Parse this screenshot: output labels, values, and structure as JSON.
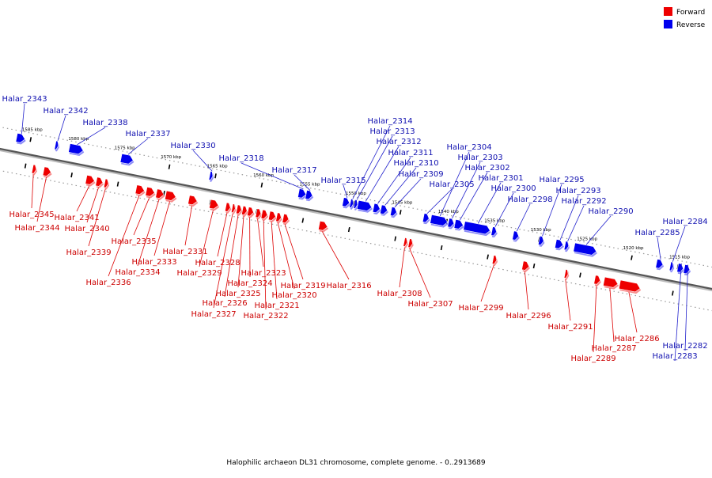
{
  "colors": {
    "forward": "#ee0000",
    "reverse": "#0000ee",
    "axis": "#555555",
    "leader_forward": "#dd0000",
    "leader_reverse": "#2020cc"
  },
  "legend": {
    "forward": "Forward",
    "reverse": "Reverse"
  },
  "caption": "Halophilic archaeon DL31 chromosome, complete genome. - 0..2913689",
  "ticks": [
    "1585 kbp",
    "1580 kbp",
    "1575 kbp",
    "1570 kbp",
    "1565 kbp",
    "1560 kbp",
    "1555 kbp",
    "1550 kbp",
    "1545 kbp",
    "1540 kbp",
    "1535 kbp",
    "1530 kbp",
    "1525 kbp",
    "1520 kbp",
    "1515 kbp"
  ],
  "genes": [
    {
      "name": "Halar_2343",
      "strand": "reverse",
      "start": 1586.5,
      "end": 1585.6
    },
    {
      "name": "Halar_2345",
      "strand": "forward",
      "start": 1584.2,
      "end": 1583.8
    },
    {
      "name": "Halar_2344",
      "strand": "forward",
      "start": 1583.0,
      "end": 1582.2
    },
    {
      "name": "Halar_2342",
      "strand": "reverse",
      "start": 1582.3,
      "end": 1582.0
    },
    {
      "name": "Halar_2338",
      "strand": "reverse",
      "start": 1580.8,
      "end": 1579.3
    },
    {
      "name": "Halar_2341",
      "strand": "forward",
      "start": 1578.4,
      "end": 1577.5
    },
    {
      "name": "Halar_2340",
      "strand": "forward",
      "start": 1577.3,
      "end": 1576.6
    },
    {
      "name": "Halar_2339",
      "strand": "forward",
      "start": 1576.4,
      "end": 1576.0
    },
    {
      "name": "Halar_2337",
      "strand": "reverse",
      "start": 1575.2,
      "end": 1573.9
    },
    {
      "name": "Halar_2336",
      "strand": "forward",
      "start": 1573.0,
      "end": 1572.1
    },
    {
      "name": "Halar_2335",
      "strand": "forward",
      "start": 1571.9,
      "end": 1571.0
    },
    {
      "name": "Halar_2334",
      "strand": "forward",
      "start": 1570.8,
      "end": 1570.0
    },
    {
      "name": "Halar_2333",
      "strand": "forward",
      "start": 1569.8,
      "end": 1568.7
    },
    {
      "name": "Halar_2331",
      "strand": "forward",
      "start": 1567.3,
      "end": 1566.4
    },
    {
      "name": "Halar_2330",
      "strand": "reverse",
      "start": 1565.6,
      "end": 1565.3
    },
    {
      "name": "Halar_2329",
      "strand": "forward",
      "start": 1565.0,
      "end": 1564.1
    },
    {
      "name": "Halar_2328",
      "strand": "forward",
      "start": 1563.3,
      "end": 1562.8
    },
    {
      "name": "Halar_2327",
      "strand": "forward",
      "start": 1562.6,
      "end": 1562.3
    },
    {
      "name": "Halar_2326",
      "strand": "forward",
      "start": 1562.1,
      "end": 1561.6
    },
    {
      "name": "Halar_2325",
      "strand": "forward",
      "start": 1561.5,
      "end": 1561.0
    },
    {
      "name": "Halar_2324",
      "strand": "forward",
      "start": 1560.9,
      "end": 1560.3
    },
    {
      "name": "Halar_2323",
      "strand": "forward",
      "start": 1560.0,
      "end": 1559.5
    },
    {
      "name": "Halar_2322",
      "strand": "forward",
      "start": 1559.4,
      "end": 1558.8
    },
    {
      "name": "Halar_2321",
      "strand": "forward",
      "start": 1558.6,
      "end": 1557.9
    },
    {
      "name": "Halar_2320",
      "strand": "forward",
      "start": 1557.8,
      "end": 1557.3
    },
    {
      "name": "Halar_2319",
      "strand": "forward",
      "start": 1557.1,
      "end": 1556.5
    },
    {
      "name": "Halar_2318",
      "strand": "reverse",
      "start": 1556.0,
      "end": 1555.2
    },
    {
      "name": "Halar_2317",
      "strand": "reverse",
      "start": 1555.2,
      "end": 1554.5
    },
    {
      "name": "Halar_2316",
      "strand": "forward",
      "start": 1553.2,
      "end": 1552.3
    },
    {
      "name": "Halar_2315",
      "strand": "reverse",
      "start": 1551.2,
      "end": 1550.5
    },
    {
      "name": "Halar_2314",
      "strand": "reverse",
      "start": 1550.4,
      "end": 1550.1
    },
    {
      "name": "Halar_2313",
      "strand": "reverse",
      "start": 1549.9,
      "end": 1549.7
    },
    {
      "name": "Halar_2312",
      "strand": "reverse",
      "start": 1549.6,
      "end": 1548.1
    },
    {
      "name": "Halar_2311",
      "strand": "reverse",
      "start": 1547.9,
      "end": 1547.2
    },
    {
      "name": "Halar_2310",
      "strand": "reverse",
      "start": 1547.1,
      "end": 1546.4
    },
    {
      "name": "Halar_2309",
      "strand": "reverse",
      "start": 1546.0,
      "end": 1545.4
    },
    {
      "name": "Halar_2308",
      "strand": "forward",
      "start": 1544.0,
      "end": 1543.7
    },
    {
      "name": "Halar_2307",
      "strand": "forward",
      "start": 1543.5,
      "end": 1543.1
    },
    {
      "name": "Halar_2305",
      "strand": "reverse",
      "start": 1542.5,
      "end": 1541.9
    },
    {
      "name": "Halar_2304",
      "strand": "reverse",
      "start": 1541.7,
      "end": 1539.9
    },
    {
      "name": "Halar_2303",
      "strand": "reverse",
      "start": 1539.8,
      "end": 1539.2
    },
    {
      "name": "Halar_2302",
      "strand": "reverse",
      "start": 1539.1,
      "end": 1538.2
    },
    {
      "name": "Halar_2301",
      "strand": "reverse",
      "start": 1538.1,
      "end": 1535.3
    },
    {
      "name": "Halar_2300",
      "strand": "reverse",
      "start": 1535.1,
      "end": 1534.6
    },
    {
      "name": "Halar_2299",
      "strand": "forward",
      "start": 1534.4,
      "end": 1534.0
    },
    {
      "name": "Halar_2298",
      "strand": "reverse",
      "start": 1532.8,
      "end": 1532.2
    },
    {
      "name": "Halar_2296",
      "strand": "forward",
      "start": 1531.2,
      "end": 1530.5
    },
    {
      "name": "Halar_2295",
      "strand": "reverse",
      "start": 1530.0,
      "end": 1529.5
    },
    {
      "name": "Halar_2293",
      "strand": "reverse",
      "start": 1528.2,
      "end": 1527.4
    },
    {
      "name": "Halar_2292",
      "strand": "reverse",
      "start": 1527.2,
      "end": 1526.8
    },
    {
      "name": "Halar_2291",
      "strand": "forward",
      "start": 1526.6,
      "end": 1526.3
    },
    {
      "name": "Halar_2290",
      "strand": "reverse",
      "start": 1526.2,
      "end": 1523.8
    },
    {
      "name": "Halar_2289",
      "strand": "forward",
      "start": 1523.4,
      "end": 1522.8
    },
    {
      "name": "Halar_2287",
      "strand": "forward",
      "start": 1522.4,
      "end": 1520.9
    },
    {
      "name": "Halar_2286",
      "strand": "forward",
      "start": 1520.7,
      "end": 1518.5
    },
    {
      "name": "Halar_2285",
      "strand": "reverse",
      "start": 1517.3,
      "end": 1516.6
    },
    {
      "name": "Halar_2284",
      "strand": "reverse",
      "start": 1515.8,
      "end": 1515.5
    },
    {
      "name": "Halar_2283",
      "strand": "reverse",
      "start": 1515.0,
      "end": 1514.4
    },
    {
      "name": "Halar_2282",
      "strand": "reverse",
      "start": 1514.3,
      "end": 1513.7
    }
  ]
}
